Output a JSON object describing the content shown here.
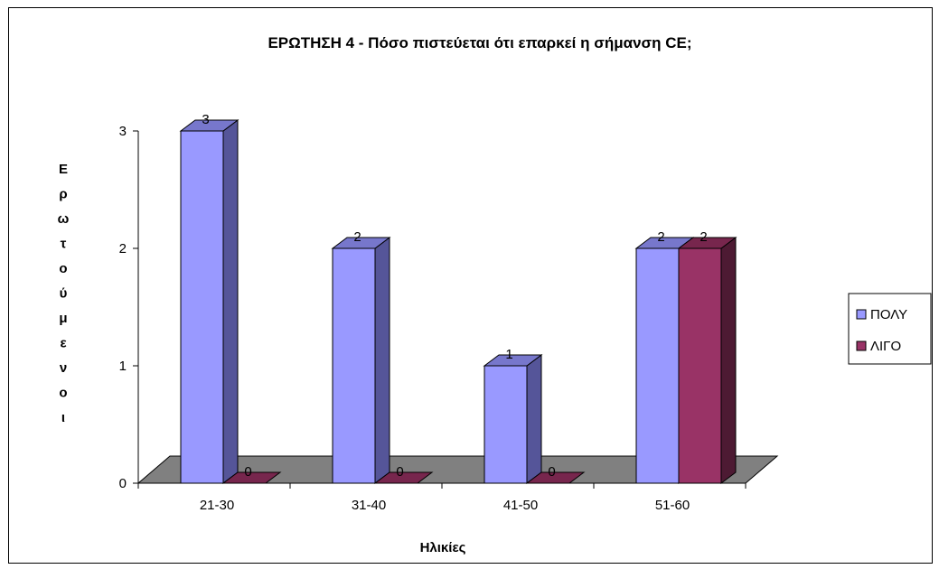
{
  "chart_data": {
    "type": "bar",
    "title": "ΕΡΩΤΗΣΗ 4 - Πόσο πιστεύεται ότι επαρκεί η σήμανση CE;",
    "xlabel": "Ηλικίες",
    "ylabel": "Ερωτούμενοι",
    "categories": [
      "21-30",
      "31-40",
      "41-50",
      "51-60"
    ],
    "series": [
      {
        "name": "ΠΟΛΥ",
        "values": [
          3,
          2,
          1,
          2
        ],
        "color": "#9999FF",
        "side_color": "#555599",
        "top_color": "#7777CC"
      },
      {
        "name": "ΛΙΓΟ",
        "values": [
          0,
          0,
          0,
          2
        ],
        "color": "#993366",
        "side_color": "#4D1A33",
        "top_color": "#77264D"
      }
    ],
    "ylim": [
      0,
      3
    ],
    "yticks": [
      0,
      1,
      2,
      3
    ],
    "legend_position": "right",
    "floor_color": "#808080",
    "grid": false
  }
}
